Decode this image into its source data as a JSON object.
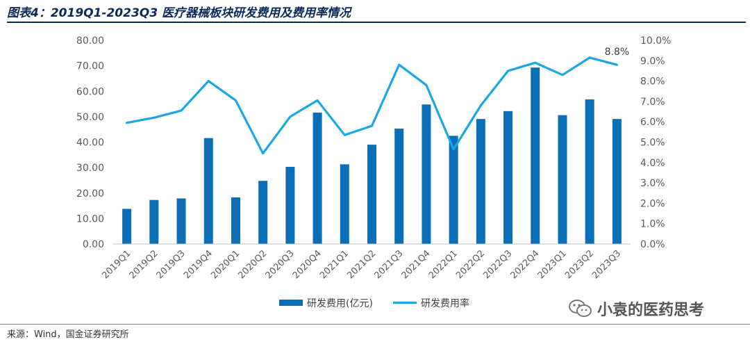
{
  "header": {
    "title": "图表4：2019Q1-2023Q3 医疗器械板块研发费用及费用率情况"
  },
  "footer": {
    "source": "来源：Wind，国金证券研究所"
  },
  "watermark": {
    "text": "小袁的医药思考",
    "icon": "wechat-icon"
  },
  "chart_data": {
    "type": "bar",
    "categories": [
      "2019Q1",
      "2019Q2",
      "2019Q3",
      "2019Q4",
      "2020Q1",
      "2020Q2",
      "2020Q3",
      "2020Q4",
      "2021Q1",
      "2021Q2",
      "2021Q3",
      "2021Q4",
      "2022Q1",
      "2022Q2",
      "2022Q3",
      "2022Q4",
      "2023Q1",
      "2023Q2",
      "2023Q3"
    ],
    "series": [
      {
        "name": "研发费用(亿元)",
        "type": "bar",
        "axis": "left",
        "color": "#0b6fb8",
        "values": [
          13.8,
          17.3,
          17.9,
          41.6,
          18.3,
          24.8,
          30.3,
          51.6,
          31.3,
          39.0,
          45.3,
          54.8,
          42.5,
          49.1,
          52.2,
          69.3,
          50.6,
          56.8,
          49.1
        ]
      },
      {
        "name": "研发费用率",
        "type": "line",
        "axis": "right",
        "color": "#1aa7e6",
        "values": [
          5.95,
          6.2,
          6.55,
          8.0,
          7.05,
          4.45,
          6.25,
          7.05,
          5.35,
          5.8,
          8.8,
          7.8,
          4.65,
          6.8,
          8.5,
          8.9,
          8.3,
          9.15,
          8.8
        ]
      }
    ],
    "y_left": {
      "min": 0,
      "max": 80,
      "step": 10,
      "tick_labels": [
        "0.00",
        "10.00",
        "20.00",
        "30.00",
        "40.00",
        "50.00",
        "60.00",
        "70.00",
        "80.00"
      ]
    },
    "y_right": {
      "min": 0,
      "max": 10,
      "step": 1,
      "tick_labels": [
        "0.0%",
        "1.0%",
        "2.0%",
        "3.0%",
        "4.0%",
        "5.0%",
        "6.0%",
        "7.0%",
        "8.0%",
        "9.0%",
        "10.0%"
      ]
    },
    "annotation": {
      "text": "8.8%",
      "category": "2023Q3"
    },
    "legend_position": "bottom",
    "grid": false
  }
}
